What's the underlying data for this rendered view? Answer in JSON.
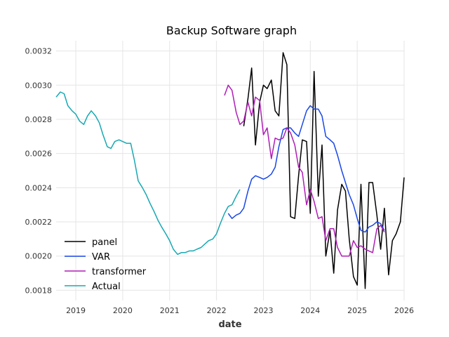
{
  "chart_data": {
    "type": "line",
    "title": "Backup Software graph",
    "xlabel": "date",
    "ylabel": "",
    "xlim": [
      2018.58,
      2026.0
    ],
    "ylim": [
      0.00174,
      0.00326
    ],
    "x_ticks": [
      2019,
      2020,
      2021,
      2022,
      2023,
      2024,
      2025,
      2026
    ],
    "x_tick_labels": [
      "2019",
      "2020",
      "2021",
      "2022",
      "2023",
      "2024",
      "2025",
      "2026"
    ],
    "y_ticks": [
      0.0018,
      0.002,
      0.0022,
      0.0024,
      0.0026,
      0.0028,
      0.003,
      0.0032
    ],
    "y_tick_labels": [
      "0.0018",
      "0.0020",
      "0.0022",
      "0.0024",
      "0.0026",
      "0.0028",
      "0.0030",
      "0.0032"
    ],
    "grid": true,
    "legend_position": "lower-left",
    "series": [
      {
        "name": "panel",
        "color": "#000000",
        "x": [
          2022.58,
          2022.67,
          2022.75,
          2022.83,
          2022.92,
          2023.0,
          2023.08,
          2023.17,
          2023.25,
          2023.33,
          2023.42,
          2023.5,
          2023.58,
          2023.67,
          2023.75,
          2023.83,
          2023.92,
          2024.0,
          2024.08,
          2024.17,
          2024.25,
          2024.33,
          2024.42,
          2024.5,
          2024.58,
          2024.67,
          2024.75,
          2024.83,
          2024.92,
          2025.0,
          2025.08,
          2025.17,
          2025.25,
          2025.33,
          2025.42,
          2025.5,
          2025.58,
          2025.67,
          2025.75,
          2025.83,
          2025.92,
          2026.0
        ],
        "y": [
          0.00276,
          0.00292,
          0.0031,
          0.00265,
          0.0029,
          0.003,
          0.00298,
          0.00303,
          0.00285,
          0.00282,
          0.00319,
          0.00312,
          0.00223,
          0.00222,
          0.00247,
          0.00268,
          0.00267,
          0.00225,
          0.00308,
          0.00235,
          0.00265,
          0.002,
          0.00215,
          0.0019,
          0.00227,
          0.00242,
          0.00238,
          0.0021,
          0.00188,
          0.00183,
          0.00242,
          0.00181,
          0.00243,
          0.00243,
          0.00224,
          0.00204,
          0.00228,
          0.00189,
          0.00209,
          0.00213,
          0.0022,
          0.00246
        ]
      },
      {
        "name": "VAR",
        "color": "#1947e6",
        "x": [
          2022.25,
          2022.33,
          2022.42,
          2022.5,
          2022.58,
          2022.67,
          2022.75,
          2022.83,
          2022.92,
          2023.0,
          2023.08,
          2023.17,
          2023.25,
          2023.33,
          2023.42,
          2023.5,
          2023.58,
          2023.67,
          2023.75,
          2023.83,
          2023.92,
          2024.0,
          2024.08,
          2024.17,
          2024.25,
          2024.33,
          2024.42,
          2024.5,
          2024.58,
          2024.67,
          2024.75,
          2024.83,
          2024.92,
          2025.0,
          2025.08,
          2025.17,
          2025.25,
          2025.33,
          2025.42,
          2025.5,
          2025.58
        ],
        "y": [
          0.00225,
          0.00222,
          0.00224,
          0.00225,
          0.00228,
          0.00238,
          0.00245,
          0.00247,
          0.00246,
          0.00245,
          0.00246,
          0.00248,
          0.00252,
          0.00264,
          0.00274,
          0.00275,
          0.00275,
          0.00272,
          0.0027,
          0.00277,
          0.00285,
          0.00288,
          0.00286,
          0.00286,
          0.00282,
          0.0027,
          0.00268,
          0.00266,
          0.00259,
          0.0025,
          0.00243,
          0.00236,
          0.0023,
          0.00222,
          0.00215,
          0.00214,
          0.00217,
          0.00218,
          0.0022,
          0.00219,
          0.00215
        ]
      },
      {
        "name": "transformer",
        "color": "#b01cb7",
        "x": [
          2022.17,
          2022.25,
          2022.33,
          2022.42,
          2022.5,
          2022.58,
          2022.67,
          2022.75,
          2022.83,
          2022.92,
          2023.0,
          2023.08,
          2023.17,
          2023.25,
          2023.33,
          2023.42,
          2023.5,
          2023.58,
          2023.67,
          2023.75,
          2023.83,
          2023.92,
          2024.0,
          2024.08,
          2024.17,
          2024.25,
          2024.33,
          2024.42,
          2024.5,
          2024.58,
          2024.67,
          2024.75,
          2024.83,
          2024.92,
          2025.0,
          2025.08,
          2025.17,
          2025.25,
          2025.33,
          2025.42,
          2025.5,
          2025.58
        ],
        "y": [
          0.00294,
          0.003,
          0.00297,
          0.00284,
          0.00277,
          0.00279,
          0.0029,
          0.00282,
          0.00293,
          0.00291,
          0.00271,
          0.00275,
          0.00257,
          0.00269,
          0.00268,
          0.00269,
          0.00275,
          0.00272,
          0.00265,
          0.00252,
          0.00249,
          0.0023,
          0.00239,
          0.00232,
          0.00222,
          0.00223,
          0.00209,
          0.00216,
          0.00216,
          0.00205,
          0.002,
          0.002,
          0.002,
          0.00209,
          0.00205,
          0.00206,
          0.00204,
          0.00203,
          0.00202,
          0.00216,
          0.00218,
          0.00214
        ]
      },
      {
        "name": "Actual",
        "color": "#17a8b3",
        "x": [
          2018.58,
          2018.67,
          2018.75,
          2018.83,
          2018.92,
          2019.0,
          2019.08,
          2019.17,
          2019.25,
          2019.33,
          2019.42,
          2019.5,
          2019.58,
          2019.67,
          2019.75,
          2019.83,
          2019.92,
          2020.0,
          2020.08,
          2020.17,
          2020.25,
          2020.33,
          2020.42,
          2020.5,
          2020.58,
          2020.67,
          2020.75,
          2020.83,
          2020.92,
          2021.0,
          2021.08,
          2021.17,
          2021.25,
          2021.33,
          2021.42,
          2021.5,
          2021.58,
          2021.67,
          2021.75,
          2021.83,
          2021.92,
          2022.0,
          2022.08,
          2022.17,
          2022.25,
          2022.33,
          2022.42,
          2022.5
        ],
        "y": [
          0.00293,
          0.00296,
          0.00295,
          0.00288,
          0.00285,
          0.00283,
          0.00279,
          0.00277,
          0.00282,
          0.00285,
          0.00282,
          0.00278,
          0.00271,
          0.00264,
          0.00263,
          0.00267,
          0.00268,
          0.00267,
          0.00266,
          0.00266,
          0.00256,
          0.00244,
          0.0024,
          0.00236,
          0.00231,
          0.00226,
          0.00221,
          0.00217,
          0.00213,
          0.00209,
          0.00204,
          0.00201,
          0.00202,
          0.00202,
          0.00203,
          0.00203,
          0.00204,
          0.00205,
          0.00207,
          0.00209,
          0.0021,
          0.00213,
          0.00219,
          0.00225,
          0.00229,
          0.0023,
          0.00235,
          0.00239
        ]
      }
    ]
  }
}
